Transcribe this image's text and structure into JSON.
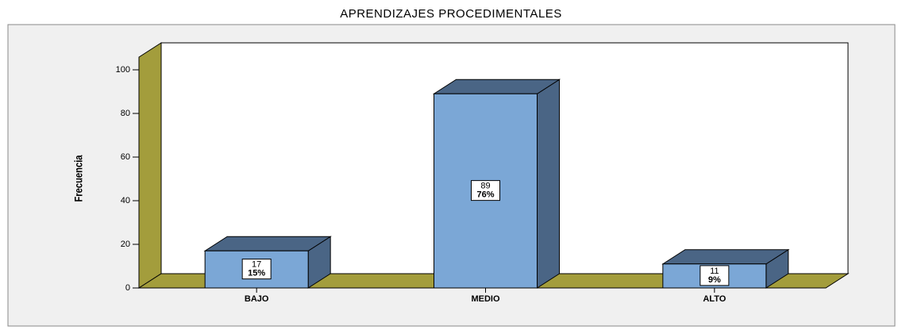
{
  "chart_data": {
    "type": "bar3d",
    "title": "APRENDIZAJES PROCEDIMENTALES",
    "y_label": "Frecuencia",
    "categories": [
      "BAJO",
      "MEDIO",
      "ALTO"
    ],
    "values": [
      17,
      89,
      11
    ],
    "percent_labels": [
      "15%",
      "76%",
      "9%"
    ],
    "color": "#7ba7d6",
    "side_color": "#4a6585",
    "wall_color": "#a39d3c",
    "ylim": [
      0,
      100
    ],
    "yticks": [
      0,
      20,
      40,
      60,
      80,
      100
    ]
  }
}
